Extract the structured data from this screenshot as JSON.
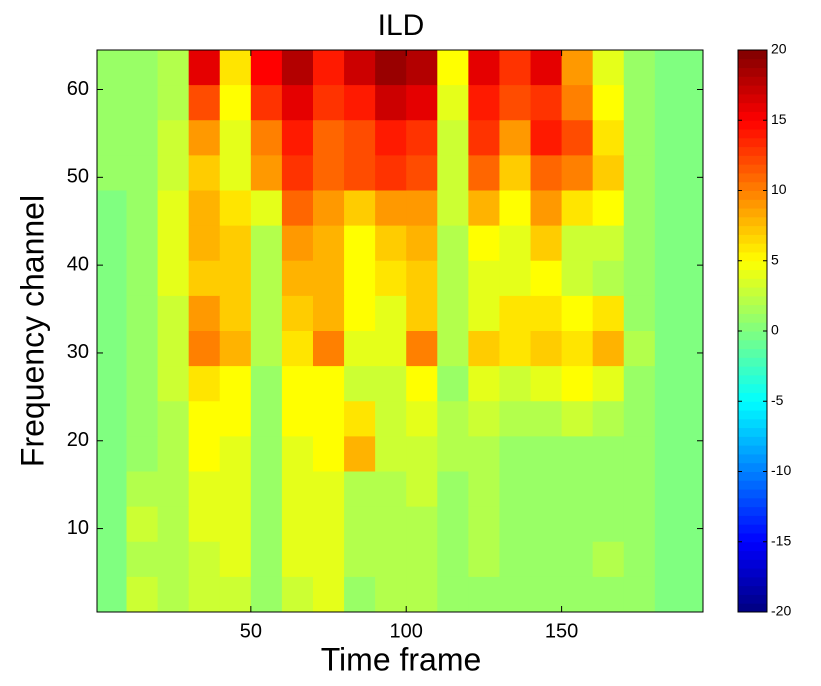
{
  "chart_data": {
    "type": "heatmap",
    "title": "ILD",
    "x_label": "Time frame",
    "y_label": "Frequency channel",
    "colormap": "jet",
    "x": [
      5,
      15,
      25,
      35,
      45,
      55,
      65,
      75,
      85,
      95,
      105,
      115,
      125,
      135,
      145,
      155,
      165,
      175,
      185,
      195
    ],
    "y": [
      62.5,
      58.5,
      54.5,
      50.5,
      46.5,
      42.5,
      38.5,
      34.5,
      30.5,
      26.5,
      22.5,
      18.5,
      14.5,
      10.5,
      6.5,
      2.5
    ],
    "z": [
      [
        1,
        1,
        2,
        16,
        6,
        15,
        18,
        14,
        17,
        19,
        18,
        5,
        16,
        13,
        16,
        9,
        4,
        1,
        0,
        0
      ],
      [
        1,
        1,
        2,
        12,
        5,
        13,
        16,
        13,
        14,
        17,
        16,
        4,
        14,
        12,
        13,
        10,
        5,
        1,
        0,
        0
      ],
      [
        1,
        1,
        3,
        9,
        4,
        10,
        14,
        11,
        12,
        14,
        13,
        3,
        13,
        9,
        14,
        12,
        6,
        1,
        0,
        0
      ],
      [
        1,
        1,
        3,
        7,
        4,
        9,
        13,
        11,
        12,
        13,
        12,
        3,
        11,
        7,
        11,
        10,
        7,
        1,
        0,
        0
      ],
      [
        0,
        1,
        4,
        8,
        6,
        4,
        11,
        9,
        7,
        9,
        9,
        3,
        8,
        5,
        9,
        6,
        5,
        1,
        0,
        0
      ],
      [
        0,
        1,
        4,
        8,
        7,
        2,
        9,
        8,
        5,
        7,
        8,
        2,
        5,
        4,
        7,
        3,
        3,
        1,
        0,
        0
      ],
      [
        0,
        1,
        4,
        7,
        7,
        2,
        8,
        8,
        5,
        6,
        7,
        2,
        4,
        4,
        5,
        3,
        2,
        1,
        0,
        0
      ],
      [
        0,
        1,
        3,
        9,
        7,
        2,
        7,
        8,
        5,
        4,
        7,
        2,
        4,
        6,
        6,
        5,
        6,
        1,
        0,
        0
      ],
      [
        0,
        1,
        3,
        10,
        8,
        2,
        6,
        10,
        4,
        4,
        10,
        2,
        7,
        6,
        7,
        6,
        8,
        2,
        0,
        0
      ],
      [
        0,
        1,
        3,
        6,
        5,
        1,
        5,
        5,
        3,
        3,
        5,
        1,
        4,
        3,
        4,
        5,
        4,
        1,
        0,
        0
      ],
      [
        0,
        1,
        2,
        5,
        5,
        1,
        5,
        5,
        6,
        3,
        4,
        2,
        3,
        2,
        2,
        3,
        2,
        1,
        0,
        0
      ],
      [
        0,
        1,
        2,
        5,
        4,
        1,
        4,
        5,
        8,
        3,
        3,
        2,
        2,
        1,
        1,
        1,
        1,
        1,
        0,
        0
      ],
      [
        0,
        2,
        2,
        4,
        4,
        1,
        4,
        4,
        2,
        2,
        3,
        1,
        2,
        1,
        1,
        1,
        1,
        1,
        0,
        0
      ],
      [
        0,
        3,
        2,
        4,
        4,
        1,
        4,
        4,
        2,
        2,
        2,
        1,
        2,
        1,
        1,
        1,
        1,
        1,
        0,
        0
      ],
      [
        0,
        2,
        2,
        3,
        4,
        1,
        4,
        4,
        2,
        2,
        2,
        1,
        2,
        1,
        1,
        1,
        2,
        1,
        0,
        0
      ],
      [
        0,
        3,
        2,
        3,
        3,
        1,
        3,
        4,
        1,
        2,
        2,
        1,
        1,
        1,
        1,
        1,
        1,
        1,
        0,
        0
      ]
    ],
    "xlim": [
      0.5,
      195.5
    ],
    "ylim": [
      0.5,
      64.5
    ],
    "xticks": [
      50,
      100,
      150
    ],
    "yticks": [
      10,
      20,
      30,
      40,
      50,
      60
    ],
    "clim": [
      -20,
      20
    ],
    "cticks": [
      -20,
      -15,
      -10,
      -5,
      0,
      5,
      10,
      15,
      20
    ]
  }
}
